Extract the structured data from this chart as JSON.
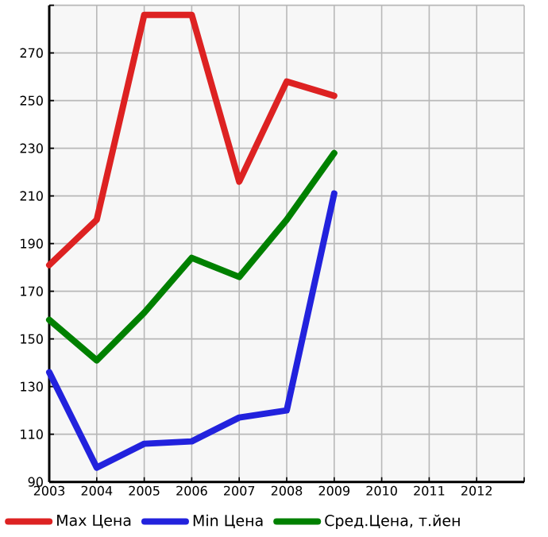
{
  "chart_data": {
    "type": "line",
    "x": [
      2003,
      2004,
      2005,
      2006,
      2007,
      2008,
      2009
    ],
    "series": [
      {
        "name": "Max Цена",
        "color": "#dd2222",
        "values": [
          181,
          200,
          286,
          286,
          216,
          258,
          252
        ]
      },
      {
        "name": "Min Цена",
        "color": "#2222dd",
        "values": [
          136,
          96,
          106,
          107,
          117,
          120,
          211
        ]
      },
      {
        "name": "Сред.Цена, т.йен",
        "color": "#008000",
        "values": [
          158,
          141,
          161,
          184,
          176,
          200,
          228
        ]
      }
    ],
    "xlim": [
      2003,
      2013
    ],
    "xticks": [
      2003,
      2004,
      2005,
      2006,
      2007,
      2008,
      2009,
      2010,
      2011,
      2012,
      {
        "value": 2013,
        "label": null
      }
    ],
    "ylim": [
      90,
      290
    ],
    "yticks": [
      90,
      110,
      130,
      150,
      170,
      190,
      210,
      230,
      250,
      270,
      {
        "value": 290,
        "label": null
      }
    ],
    "grid": true,
    "legend": "bottom",
    "marker": "none",
    "line_style": "solid"
  }
}
